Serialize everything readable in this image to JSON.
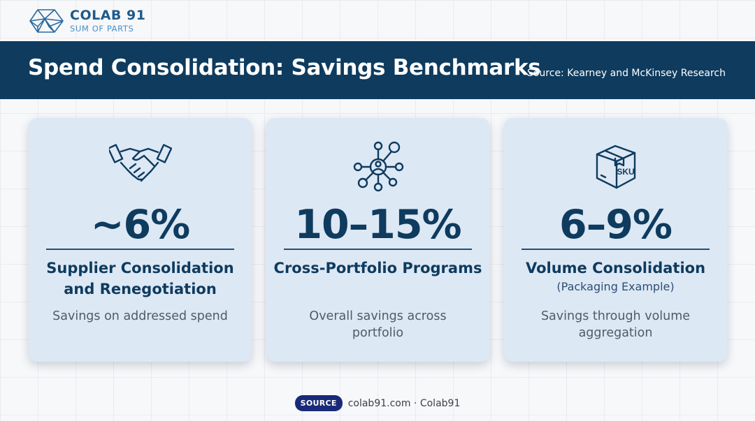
{
  "brand": {
    "name": "COLAB 91",
    "tagline": "SUM OF PARTS",
    "icon": "geodesic-logo-icon"
  },
  "header": {
    "title": "Spend Consolidation: Savings Benchmarks",
    "source": "Source: Kearney and McKinsey Research"
  },
  "cards": [
    {
      "icon": "handshake-icon",
      "value": "~6%",
      "title": "Supplier Consolidation and Renegotiation",
      "subtitle": "",
      "description": "Savings on addressed spend"
    },
    {
      "icon": "network-hub-icon",
      "value": "10–15%",
      "title": "Cross-Portfolio Programs",
      "subtitle": "",
      "description": "Overall savings across portfolio"
    },
    {
      "icon": "sku-box-icon",
      "icon_label": "SKU",
      "value": "6–9%",
      "title": "Volume Consolidation",
      "subtitle": "(Packaging Example)",
      "description": "Savings through volume aggregation"
    }
  ],
  "footer": {
    "badge": "SOURCE",
    "text": "colab91.com · Colab91"
  },
  "colors": {
    "banner": "#0e3b5e",
    "card_background": "#dde8f5",
    "accent_text": "#0e3b5e",
    "badge": "#1a2a78"
  }
}
